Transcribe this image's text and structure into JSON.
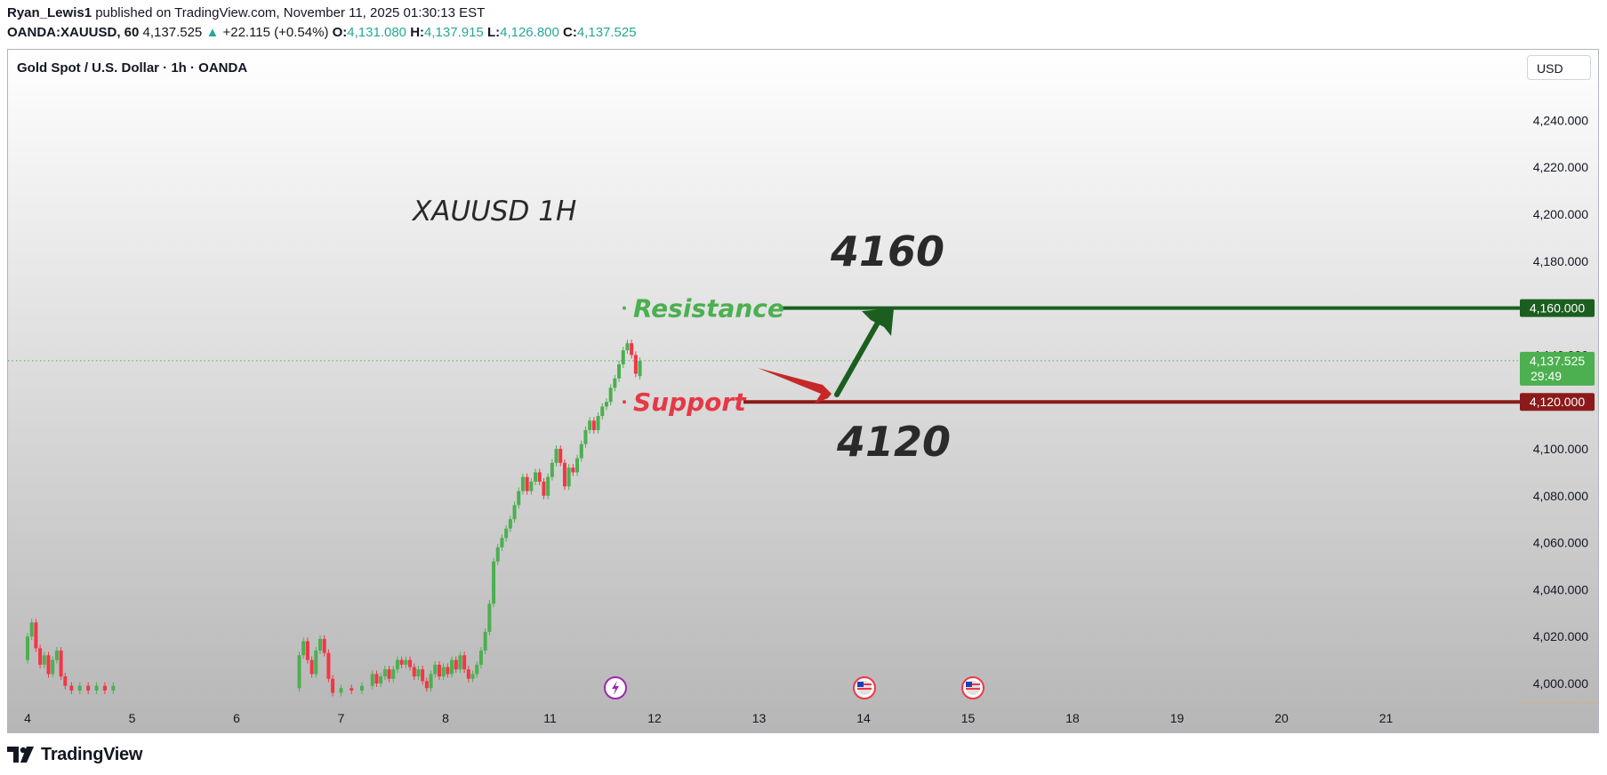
{
  "header": {
    "author": "Ryan_Lewis1",
    "published": "published on TradingView.com, November 11, 2025 01:30:13 EST",
    "symbol": "OANDA:XAUUSD, 60",
    "last": "4,137.525",
    "change_arrow": "▲",
    "change": "+22.115 (+0.54%)",
    "o_label": "O:",
    "o": "4,131.080",
    "h_label": "H:",
    "h": "4,137.915",
    "l_label": "L:",
    "l": "4,126.800",
    "c_label": "C:",
    "c": "4,137.525"
  },
  "pane": {
    "title": "Gold Spot / U.S. Dollar · 1h · OANDA",
    "currency": "USD"
  },
  "chart_data": {
    "type": "candlestick",
    "x_ticks": [
      "4",
      "5",
      "6",
      "7",
      "8",
      "11",
      "12",
      "13",
      "14",
      "15",
      "18",
      "19",
      "20",
      "21"
    ],
    "y_ticks": [
      4000,
      4020,
      4040,
      4060,
      4080,
      4100,
      4120,
      4140,
      4160,
      4180,
      4200,
      4220,
      4240
    ],
    "y_tick_labels": [
      "4,000.000",
      "4,020.000",
      "4,040.000",
      "4,060.000",
      "4,080.000",
      "4,100.000",
      "4,120.000",
      "4,140.000",
      "4,160.000",
      "4,180.000",
      "4,200.000",
      "4,220.000",
      "4,240.000"
    ],
    "ylim": [
      3995,
      4255
    ],
    "candles": [
      {
        "x": 0.0,
        "o": 4010,
        "c": 4020
      },
      {
        "x": 0.04,
        "o": 4020,
        "c": 4026
      },
      {
        "x": 0.08,
        "o": 4026,
        "c": 4015
      },
      {
        "x": 0.12,
        "o": 4015,
        "c": 4008
      },
      {
        "x": 0.16,
        "o": 4008,
        "c": 4012
      },
      {
        "x": 0.2,
        "o": 4012,
        "c": 4004
      },
      {
        "x": 0.24,
        "o": 4004,
        "c": 4010
      },
      {
        "x": 0.28,
        "o": 4010,
        "c": 4014
      },
      {
        "x": 0.32,
        "o": 4014,
        "c": 4003
      },
      {
        "x": 0.36,
        "o": 4003,
        "c": 3999
      },
      {
        "x": 0.42,
        "o": 3999,
        "c": 3997
      },
      {
        "x": 0.5,
        "o": 3997,
        "c": 3999
      },
      {
        "x": 0.58,
        "o": 3999,
        "c": 3997
      },
      {
        "x": 0.66,
        "o": 3997,
        "c": 3999
      },
      {
        "x": 0.74,
        "o": 3999,
        "c": 3997
      },
      {
        "x": 0.82,
        "o": 3997,
        "c": 3999
      },
      {
        "x": 2.6,
        "o": 3998,
        "c": 4012
      },
      {
        "x": 2.64,
        "o": 4012,
        "c": 4018
      },
      {
        "x": 2.68,
        "o": 4018,
        "c": 4010
      },
      {
        "x": 2.72,
        "o": 4010,
        "c": 4004
      },
      {
        "x": 2.76,
        "o": 4004,
        "c": 4014
      },
      {
        "x": 2.8,
        "o": 4014,
        "c": 4019
      },
      {
        "x": 2.84,
        "o": 4019,
        "c": 4013
      },
      {
        "x": 2.88,
        "o": 4013,
        "c": 4002
      },
      {
        "x": 2.92,
        "o": 4002,
        "c": 3996
      },
      {
        "x": 3.0,
        "o": 3996,
        "c": 3998
      },
      {
        "x": 3.1,
        "o": 3998,
        "c": 3997
      },
      {
        "x": 3.2,
        "o": 3997,
        "c": 3999
      },
      {
        "x": 3.3,
        "o": 3999,
        "c": 4004
      },
      {
        "x": 3.34,
        "o": 4004,
        "c": 4000
      },
      {
        "x": 3.38,
        "o": 4000,
        "c": 4003
      },
      {
        "x": 3.42,
        "o": 4003,
        "c": 4006
      },
      {
        "x": 3.46,
        "o": 4006,
        "c": 4002
      },
      {
        "x": 3.5,
        "o": 4002,
        "c": 4006
      },
      {
        "x": 3.54,
        "o": 4006,
        "c": 4010
      },
      {
        "x": 3.58,
        "o": 4010,
        "c": 4008
      },
      {
        "x": 3.62,
        "o": 4008,
        "c": 4010
      },
      {
        "x": 3.66,
        "o": 4010,
        "c": 4007
      },
      {
        "x": 3.7,
        "o": 4007,
        "c": 4003
      },
      {
        "x": 3.74,
        "o": 4003,
        "c": 4006
      },
      {
        "x": 3.78,
        "o": 4006,
        "c": 4001
      },
      {
        "x": 3.82,
        "o": 4001,
        "c": 3998
      },
      {
        "x": 3.86,
        "o": 3998,
        "c": 4004
      },
      {
        "x": 3.9,
        "o": 4004,
        "c": 4008
      },
      {
        "x": 3.94,
        "o": 4008,
        "c": 4003
      },
      {
        "x": 3.98,
        "o": 4003,
        "c": 4007
      },
      {
        "x": 4.02,
        "o": 4007,
        "c": 4004
      },
      {
        "x": 4.06,
        "o": 4004,
        "c": 4010
      },
      {
        "x": 4.1,
        "o": 4010,
        "c": 4006
      },
      {
        "x": 4.14,
        "o": 4006,
        "c": 4012
      },
      {
        "x": 4.18,
        "o": 4012,
        "c": 4006
      },
      {
        "x": 4.22,
        "o": 4006,
        "c": 4002
      },
      {
        "x": 4.26,
        "o": 4002,
        "c": 4004
      },
      {
        "x": 4.3,
        "o": 4004,
        "c": 4008
      },
      {
        "x": 4.34,
        "o": 4008,
        "c": 4014
      },
      {
        "x": 4.38,
        "o": 4014,
        "c": 4022
      },
      {
        "x": 4.42,
        "o": 4022,
        "c": 4034
      },
      {
        "x": 4.46,
        "o": 4034,
        "c": 4052
      },
      {
        "x": 4.5,
        "o": 4052,
        "c": 4058
      },
      {
        "x": 4.54,
        "o": 4058,
        "c": 4062
      },
      {
        "x": 4.58,
        "o": 4062,
        "c": 4066
      },
      {
        "x": 4.62,
        "o": 4066,
        "c": 4070
      },
      {
        "x": 4.66,
        "o": 4070,
        "c": 4076
      },
      {
        "x": 4.7,
        "o": 4076,
        "c": 4082
      },
      {
        "x": 4.74,
        "o": 4082,
        "c": 4088
      },
      {
        "x": 4.78,
        "o": 4088,
        "c": 4082
      },
      {
        "x": 4.82,
        "o": 4082,
        "c": 4086
      },
      {
        "x": 4.86,
        "o": 4086,
        "c": 4090
      },
      {
        "x": 4.9,
        "o": 4090,
        "c": 4086
      },
      {
        "x": 4.94,
        "o": 4086,
        "c": 4080
      },
      {
        "x": 4.98,
        "o": 4080,
        "c": 4088
      },
      {
        "x": 5.02,
        "o": 4088,
        "c": 4094
      },
      {
        "x": 5.06,
        "o": 4094,
        "c": 4100
      },
      {
        "x": 5.1,
        "o": 4100,
        "c": 4094
      },
      {
        "x": 5.14,
        "o": 4094,
        "c": 4084
      },
      {
        "x": 5.18,
        "o": 4084,
        "c": 4092
      },
      {
        "x": 5.22,
        "o": 4092,
        "c": 4090
      },
      {
        "x": 5.26,
        "o": 4090,
        "c": 4096
      },
      {
        "x": 5.3,
        "o": 4096,
        "c": 4102
      },
      {
        "x": 5.34,
        "o": 4102,
        "c": 4108
      },
      {
        "x": 5.38,
        "o": 4108,
        "c": 4112
      },
      {
        "x": 5.42,
        "o": 4112,
        "c": 4108
      },
      {
        "x": 5.46,
        "o": 4108,
        "c": 4114
      },
      {
        "x": 5.5,
        "o": 4114,
        "c": 4118
      },
      {
        "x": 5.54,
        "o": 4118,
        "c": 4120
      },
      {
        "x": 5.58,
        "o": 4120,
        "c": 4126
      },
      {
        "x": 5.62,
        "o": 4126,
        "c": 4130
      },
      {
        "x": 5.66,
        "o": 4130,
        "c": 4136
      },
      {
        "x": 5.7,
        "o": 4136,
        "c": 4142
      },
      {
        "x": 5.74,
        "o": 4142,
        "c": 4145
      },
      {
        "x": 5.78,
        "o": 4145,
        "c": 4140
      },
      {
        "x": 5.82,
        "o": 4140,
        "c": 4132
      },
      {
        "x": 5.86,
        "o": 4131,
        "c": 4137.5
      }
    ],
    "last_price": 4137.525,
    "last_price_label": "4,137.525",
    "countdown_label": "29:49",
    "annotations": {
      "title": "XAUUSD 1H",
      "resistance_label": "Resistance",
      "resistance_value": 4160,
      "resistance_price_label": "4,160.000",
      "resistance_big": "4160",
      "support_label": "Support",
      "support_value": 4120,
      "support_price_label": "4,120.000",
      "support_big": "4120"
    },
    "colors": {
      "up": "#4caf50",
      "down": "#f23645",
      "resistance": "#1b5e20",
      "support": "#8b1a1a",
      "resistance_text": "#4caf50",
      "support_text": "#e53945",
      "annotation_text": "#2a2a2a",
      "last_price_bg": "#4caf50"
    }
  },
  "footer": {
    "brand": "TradingView"
  }
}
